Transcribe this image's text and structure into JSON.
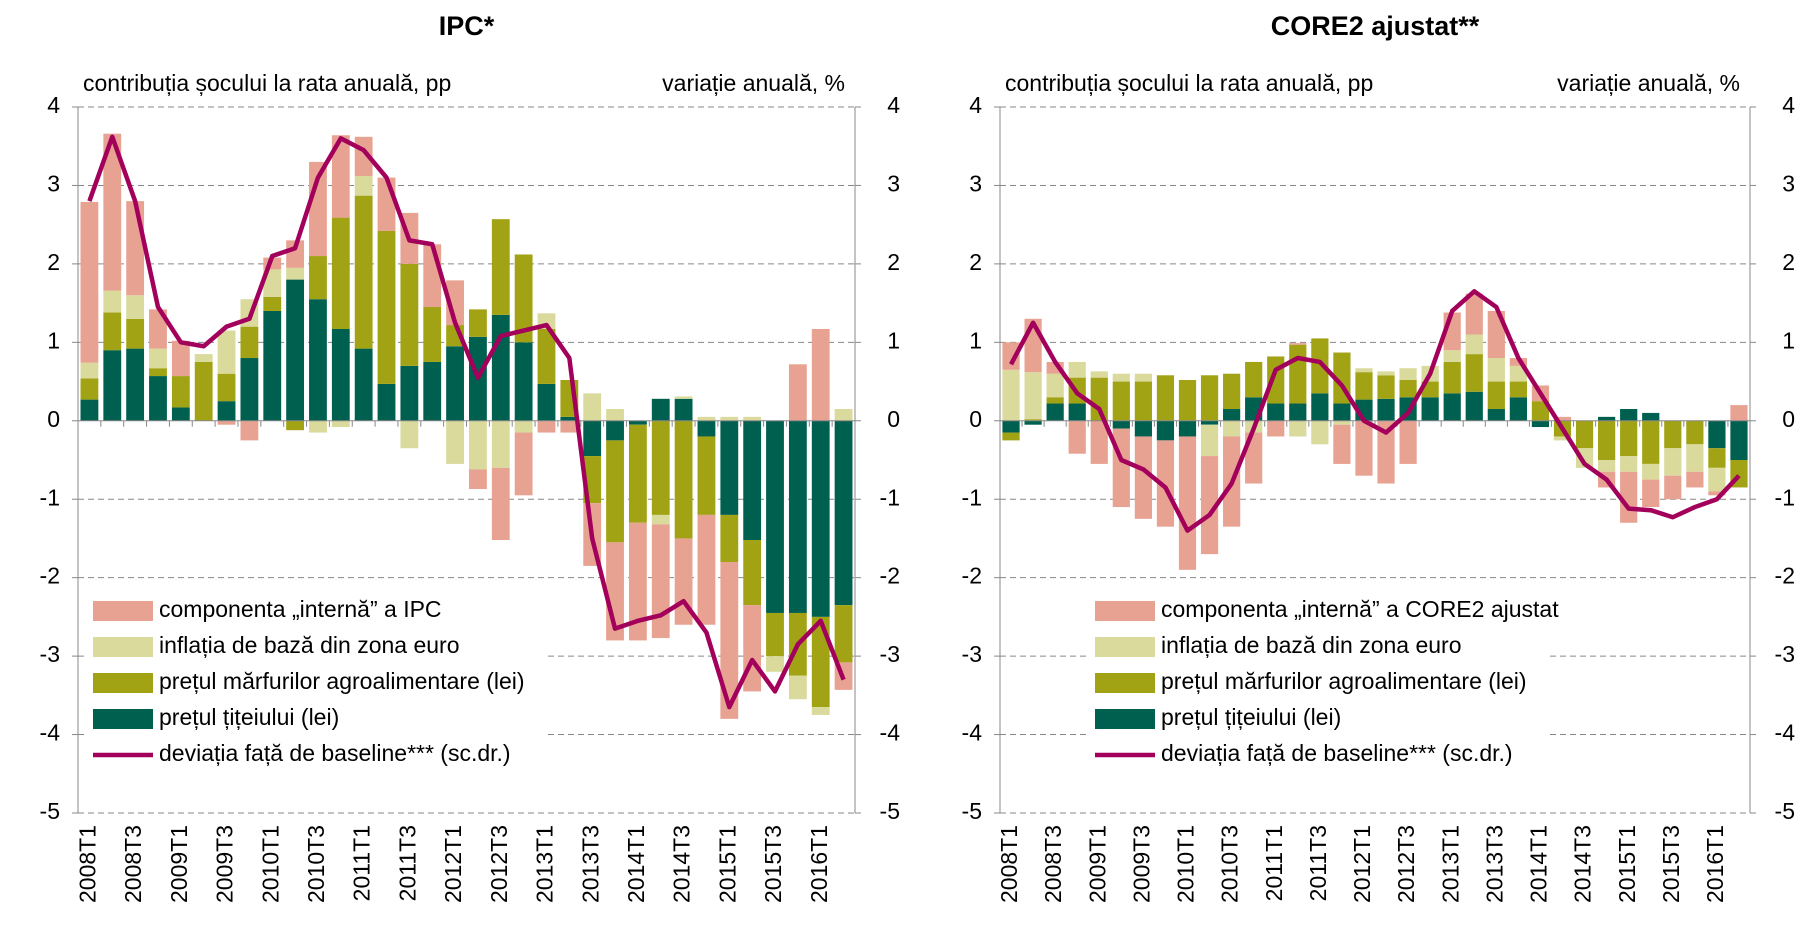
{
  "chart_data": [
    {
      "type": "bar",
      "title": "IPC*",
      "y_label": "contribuția șocului la rata anuală, pp",
      "y2_label": "variație anuală, %",
      "categories": [
        "2008T1",
        null,
        "2008T3",
        null,
        "2009T1",
        null,
        "2009T3",
        null,
        "2010T1",
        null,
        "2010T3",
        null,
        "2011T1",
        null,
        "2011T3",
        null,
        "2012T1",
        null,
        "2012T3",
        null,
        "2013T1",
        null,
        "2013T3",
        null,
        "2014T1",
        null,
        "2014T3",
        null,
        "2015T1",
        null,
        "2015T3",
        null,
        "2016T1",
        null
      ],
      "ylim": [
        -5,
        4
      ],
      "yticks": [
        -5,
        -4,
        -3,
        -2,
        -1,
        0,
        1,
        2,
        3,
        4
      ],
      "y2lim": [
        -5,
        4
      ],
      "y2ticks": [
        -5,
        -4,
        -3,
        -2,
        -1,
        0,
        1,
        2,
        3,
        4
      ],
      "grid": true,
      "legend_position": "lower left",
      "series": [
        {
          "name": "componenta „internă” a IPC",
          "type": "bar",
          "color": "#e8a292",
          "values": [
            2.05,
            2.0,
            1.2,
            0.5,
            0.45,
            0,
            -0.05,
            -0.25,
            0.15,
            0.35,
            1.2,
            1.05,
            0.5,
            0.68,
            0.65,
            0.8,
            0.57,
            -0.25,
            -0.92,
            -0.8,
            -0.15,
            -0.15,
            -0.8,
            -1.25,
            -1.5,
            -1.45,
            -1.1,
            -1.4,
            -2.0,
            -1.1,
            0,
            0.72,
            1.17,
            -0.35
          ]
        },
        {
          "name": "inflația de bază din zona euro",
          "type": "bar",
          "color": "#d9da9c",
          "values": [
            0.2,
            0.28,
            0.3,
            0.25,
            0,
            0.1,
            0.55,
            0.35,
            0.35,
            0.15,
            -0.15,
            -0.08,
            0.25,
            0,
            -0.35,
            0,
            -0.55,
            -0.62,
            -0.6,
            -0.15,
            0.2,
            0,
            0.35,
            0.15,
            0,
            -0.12,
            0.03,
            0.05,
            0.05,
            0.05,
            -0.2,
            -0.3,
            -0.1,
            0.15
          ]
        },
        {
          "name": "prețul mărfurilor agroalimentare (lei)",
          "type": "bar",
          "color": "#a2a314",
          "values": [
            0.27,
            0.48,
            0.38,
            0.1,
            0.4,
            0.75,
            0.35,
            0.4,
            0.18,
            -0.12,
            0.55,
            1.42,
            1.95,
            1.95,
            1.3,
            0.7,
            0.27,
            0.35,
            1.22,
            1.12,
            0.7,
            0.47,
            -0.6,
            -1.3,
            -1.25,
            -1.2,
            -1.5,
            -1.0,
            -0.6,
            -0.83,
            -0.55,
            -0.8,
            -1.15,
            -0.73
          ]
        },
        {
          "name": "prețul țițeiului (lei)",
          "type": "bar",
          "color": "#00604f",
          "values": [
            0.27,
            0.9,
            0.92,
            0.57,
            0.17,
            0,
            0.25,
            0.8,
            1.4,
            1.8,
            1.55,
            1.17,
            0.92,
            0.47,
            0.7,
            0.75,
            0.95,
            1.07,
            1.35,
            1.0,
            0.47,
            0.05,
            -0.45,
            -0.25,
            -0.05,
            0.28,
            0.28,
            -0.2,
            -1.2,
            -1.52,
            -2.45,
            -2.45,
            -2.5,
            -2.35
          ]
        },
        {
          "name": "deviația față de baseline*** (sc.dr.)",
          "type": "line",
          "axis": "y2",
          "color": "#a3005c",
          "values": [
            2.8,
            3.62,
            2.8,
            1.45,
            1.0,
            0.95,
            1.2,
            1.3,
            2.1,
            2.2,
            3.1,
            3.6,
            3.45,
            3.1,
            2.3,
            2.25,
            1.25,
            0.55,
            1.08,
            1.15,
            1.22,
            0.8,
            -1.5,
            -2.65,
            -2.55,
            -2.48,
            -2.3,
            -2.7,
            -3.65,
            -3.05,
            -3.45,
            -2.85,
            -2.55,
            -3.3
          ]
        }
      ]
    },
    {
      "type": "bar",
      "title": "CORE2 ajustat**",
      "y_label": "contribuția șocului la rata anuală, pp",
      "y2_label": "variație anuală, %",
      "categories": [
        "2008T1",
        null,
        "2008T3",
        null,
        "2009T1",
        null,
        "2009T3",
        null,
        "2010T1",
        null,
        "2010T3",
        null,
        "2011T1",
        null,
        "2011T3",
        null,
        "2012T1",
        null,
        "2012T3",
        null,
        "2013T1",
        null,
        "2013T3",
        null,
        "2014T1",
        null,
        "2014T3",
        null,
        "2015T1",
        null,
        "2015T3",
        null,
        "2016T1",
        null
      ],
      "ylim": [
        -5,
        4
      ],
      "yticks": [
        -5,
        -4,
        -3,
        -2,
        -1,
        0,
        1,
        2,
        3,
        4
      ],
      "y2lim": [
        -5,
        4
      ],
      "y2ticks": [
        -5,
        -4,
        -3,
        -2,
        -1,
        0,
        1,
        2,
        3,
        4
      ],
      "grid": true,
      "legend_position": "lower left",
      "series": [
        {
          "name": "componenta „internă” a CORE2 ajustat",
          "type": "bar",
          "color": "#e8a292",
          "values": [
            0.35,
            0.68,
            0.15,
            -0.42,
            -0.55,
            -1.0,
            -1.05,
            -1.1,
            -1.7,
            -1.25,
            -1.15,
            -0.65,
            -0.2,
            0.02,
            0,
            -0.5,
            -0.7,
            -0.8,
            -0.55,
            0,
            0.48,
            0.52,
            0.6,
            0.1,
            0.2,
            0.05,
            0,
            -0.2,
            -0.65,
            -0.35,
            -0.3,
            -0.2,
            -0.05,
            0.2
          ]
        },
        {
          "name": "inflația de bază din zona euro",
          "type": "bar",
          "color": "#d9da9c",
          "values": [
            0.65,
            0.6,
            0.3,
            0.2,
            0.08,
            0.1,
            0.1,
            0,
            0,
            -0.4,
            -0.2,
            -0.15,
            0,
            -0.2,
            -0.3,
            -0.05,
            0.05,
            0.05,
            0.15,
            0.2,
            0.15,
            0.25,
            0.3,
            0.2,
            0,
            -0.05,
            -0.25,
            -0.15,
            -0.2,
            -0.2,
            -0.35,
            -0.35,
            -0.3,
            0
          ]
        },
        {
          "name": "prețul mărfurilor agroalimentare (lei)",
          "type": "bar",
          "color": "#a2a314",
          "values": [
            -0.1,
            0.02,
            0.08,
            0.33,
            0.55,
            0.5,
            0.5,
            0.58,
            0.52,
            0.58,
            0.45,
            0.45,
            0.6,
            0.75,
            0.7,
            0.65,
            0.35,
            0.3,
            0.22,
            0.2,
            0.4,
            0.48,
            0.35,
            0.2,
            0.25,
            -0.2,
            -0.35,
            -0.5,
            -0.45,
            -0.55,
            -0.35,
            -0.3,
            -0.25,
            -0.35
          ]
        },
        {
          "name": "prețul țițeiului (lei)",
          "type": "bar",
          "color": "#00604f",
          "values": [
            -0.15,
            -0.05,
            0.22,
            0.22,
            0,
            -0.1,
            -0.2,
            -0.25,
            -0.2,
            -0.05,
            0.15,
            0.3,
            0.22,
            0.22,
            0.35,
            0.22,
            0.27,
            0.28,
            0.3,
            0.3,
            0.35,
            0.37,
            0.15,
            0.3,
            -0.08,
            0,
            0,
            0.05,
            0.15,
            0.1,
            0,
            0,
            -0.35,
            -0.5
          ]
        },
        {
          "name": "deviația față de baseline*** (sc.dr.)",
          "type": "line",
          "axis": "y2",
          "color": "#a3005c",
          "values": [
            0.72,
            1.25,
            0.75,
            0.35,
            0.15,
            -0.5,
            -0.62,
            -0.85,
            -1.4,
            -1.2,
            -0.8,
            -0.1,
            0.65,
            0.8,
            0.75,
            0.45,
            0,
            -0.15,
            0.1,
            0.6,
            1.4,
            1.65,
            1.45,
            0.8,
            0.35,
            -0.1,
            -0.55,
            -0.75,
            -1.12,
            -1.14,
            -1.23,
            -1.1,
            -1.0,
            -0.7
          ]
        }
      ]
    }
  ]
}
